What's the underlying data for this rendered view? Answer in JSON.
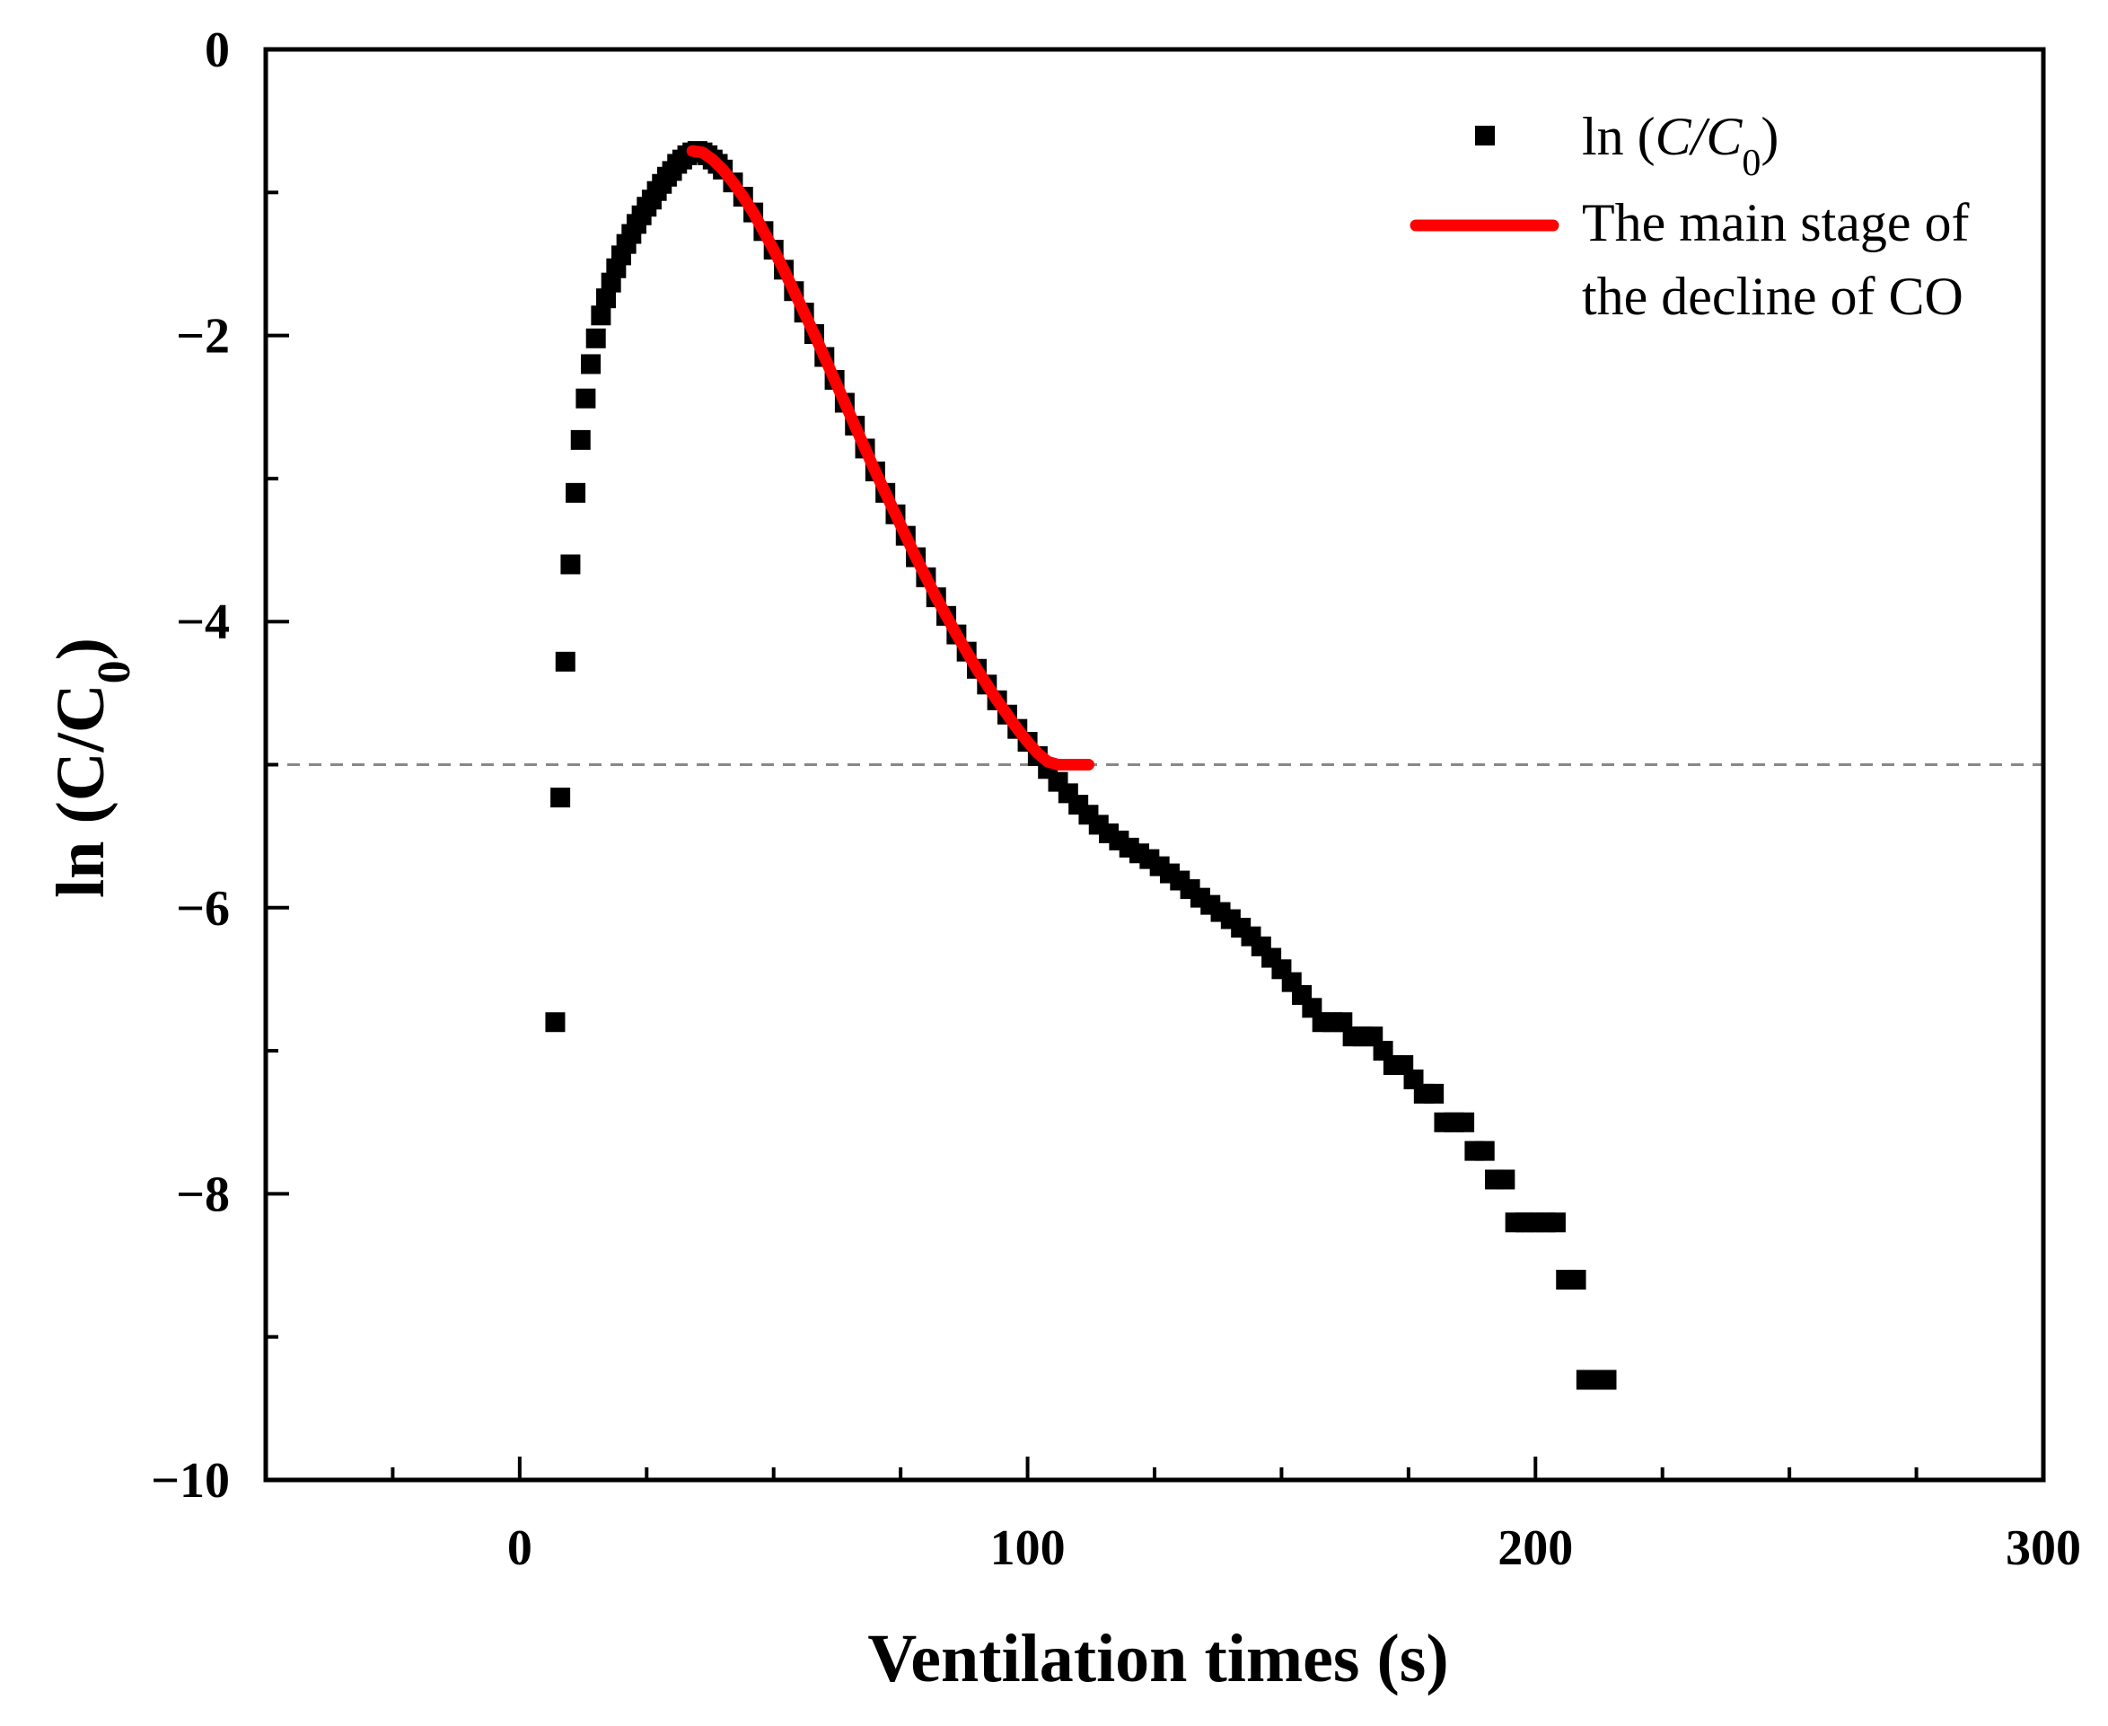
{
  "chart_data": {
    "type": "scatter",
    "xlabel": "Ventilation times (s)",
    "ylabel_main": "ln (C/C",
    "ylabel_sub": "0",
    "ylabel_close": ")",
    "xlim": [
      -50,
      300
    ],
    "ylim": [
      -10,
      0
    ],
    "xticks": [
      0,
      100,
      200,
      300
    ],
    "xtick_labels": [
      "0",
      "100",
      "200",
      "300"
    ],
    "yticks": [
      0,
      -2,
      -4,
      -6,
      -8,
      -10
    ],
    "ytick_labels": [
      "0",
      "−2",
      "−4",
      "−6",
      "−8",
      "−10"
    ],
    "reference_line_y": -5,
    "colors": {
      "scatter": "#000000",
      "fit": "#ff0000",
      "reference": "#888888",
      "axis": "#000000"
    },
    "legend": {
      "position": "top-right",
      "scatter_label_prefix": "ln (",
      "scatter_label_var": "C/C",
      "scatter_label_sub": "0",
      "scatter_label_suffix": ")",
      "line_label_line1": "The main stage of",
      "line_label_line2": "the decline of CO"
    },
    "series": [
      {
        "name": "ln (C/C0)",
        "type": "scatter",
        "x": [
          7,
          8,
          9,
          10,
          11,
          12,
          13,
          14,
          15,
          16,
          17,
          18,
          19,
          20,
          21,
          22,
          23,
          24,
          25,
          26,
          27,
          28,
          29,
          30,
          31,
          32,
          33,
          34,
          35,
          36,
          37,
          38,
          39,
          40,
          42,
          44,
          46,
          48,
          50,
          52,
          54,
          56,
          58,
          60,
          62,
          64,
          66,
          68,
          70,
          72,
          74,
          76,
          78,
          80,
          82,
          84,
          86,
          88,
          90,
          92,
          94,
          96,
          98,
          100,
          102,
          104,
          106,
          108,
          110,
          112,
          114,
          116,
          118,
          120,
          122,
          124,
          126,
          128,
          130,
          132,
          134,
          136,
          138,
          140,
          142,
          144,
          146,
          148,
          150,
          152,
          154,
          156,
          158,
          160,
          162,
          164,
          166,
          168,
          170,
          172,
          174,
          176,
          178,
          180,
          182,
          184,
          186,
          188,
          190,
          192,
          194,
          196,
          198,
          200,
          202,
          204,
          206,
          208,
          210,
          212,
          214
        ],
        "y": [
          -6.8,
          -5.23,
          -4.28,
          -3.6,
          -3.1,
          -2.73,
          -2.44,
          -2.2,
          -2.02,
          -1.86,
          -1.74,
          -1.63,
          -1.53,
          -1.44,
          -1.36,
          -1.29,
          -1.22,
          -1.16,
          -1.1,
          -1.05,
          -0.99,
          -0.94,
          -0.89,
          -0.85,
          -0.8,
          -0.77,
          -0.74,
          -0.72,
          -0.71,
          -0.72,
          -0.74,
          -0.77,
          -0.8,
          -0.84,
          -0.93,
          -1.03,
          -1.14,
          -1.27,
          -1.4,
          -1.54,
          -1.69,
          -1.84,
          -1.99,
          -2.15,
          -2.31,
          -2.47,
          -2.63,
          -2.79,
          -2.95,
          -3.1,
          -3.25,
          -3.4,
          -3.55,
          -3.69,
          -3.83,
          -3.96,
          -4.09,
          -4.21,
          -4.33,
          -4.44,
          -4.55,
          -4.65,
          -4.75,
          -4.84,
          -4.94,
          -5.03,
          -5.12,
          -5.2,
          -5.28,
          -5.35,
          -5.42,
          -5.48,
          -5.53,
          -5.58,
          -5.62,
          -5.66,
          -5.71,
          -5.76,
          -5.81,
          -5.87,
          -5.93,
          -5.98,
          -6.03,
          -6.08,
          -6.14,
          -6.2,
          -6.27,
          -6.35,
          -6.43,
          -6.52,
          -6.61,
          -6.7,
          -6.8,
          -6.8,
          -6.8,
          -6.9,
          -6.9,
          -6.9,
          -7.0,
          -7.1,
          -7.1,
          -7.2,
          -7.3,
          -7.3,
          -7.5,
          -7.5,
          -7.5,
          -7.7,
          -7.7,
          -7.9,
          -7.9,
          -8.2,
          -8.2,
          -8.2,
          -8.2,
          -8.2,
          -8.6,
          -8.6,
          -9.3,
          -9.3,
          -9.3
        ]
      },
      {
        "name": "The main stage of the decline of CO",
        "type": "line",
        "x": [
          34,
          36,
          38,
          40,
          42,
          44,
          46,
          48,
          50,
          52,
          54,
          56,
          58,
          60,
          62,
          64,
          66,
          68,
          70,
          72,
          74,
          76,
          78,
          80,
          82,
          84,
          86,
          88,
          90,
          92,
          94,
          96,
          98,
          100,
          102,
          104,
          106,
          108,
          110,
          112
        ],
        "y": [
          -0.71,
          -0.72,
          -0.77,
          -0.84,
          -0.93,
          -1.03,
          -1.14,
          -1.27,
          -1.4,
          -1.54,
          -1.69,
          -1.84,
          -1.99,
          -2.15,
          -2.31,
          -2.47,
          -2.63,
          -2.79,
          -2.95,
          -3.1,
          -3.25,
          -3.4,
          -3.55,
          -3.69,
          -3.83,
          -3.96,
          -4.09,
          -4.21,
          -4.33,
          -4.44,
          -4.55,
          -4.65,
          -4.75,
          -4.84,
          -4.92,
          -4.98,
          -5.0,
          -5.0,
          -5.0,
          -5.0
        ]
      }
    ]
  }
}
